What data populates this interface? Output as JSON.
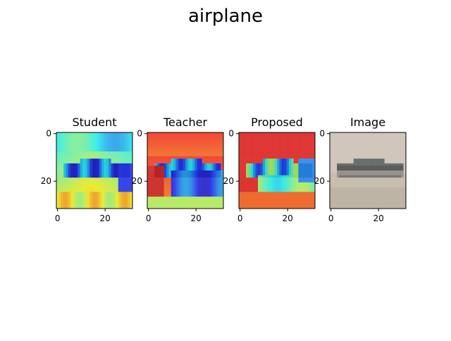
{
  "figure": {
    "suptitle": "airplane"
  },
  "chart_data": [
    {
      "type": "heatmap",
      "title": "Student",
      "xlabel": "",
      "ylabel": "",
      "xlim": [
        0,
        31
      ],
      "ylim": [
        31,
        0
      ],
      "xticks": [
        0,
        20
      ],
      "yticks": [
        0,
        20
      ],
      "grid": false,
      "content": "heatmap"
    },
    {
      "type": "heatmap",
      "title": "Teacher",
      "xlabel": "",
      "ylabel": "",
      "xlim": [
        0,
        31
      ],
      "ylim": [
        31,
        0
      ],
      "xticks": [
        0,
        20
      ],
      "yticks": [
        0,
        20
      ],
      "grid": false,
      "content": "heatmap"
    },
    {
      "type": "heatmap",
      "title": "Proposed",
      "xlabel": "",
      "ylabel": "",
      "xlim": [
        0,
        31
      ],
      "ylim": [
        31,
        0
      ],
      "xticks": [
        0,
        20
      ],
      "yticks": [
        0,
        20
      ],
      "grid": false,
      "content": "heatmap"
    },
    {
      "type": "heatmap",
      "title": "Image",
      "xlabel": "",
      "ylabel": "",
      "xlim": [
        0,
        31
      ],
      "ylim": [
        31,
        0
      ],
      "xticks": [
        0,
        20
      ],
      "yticks": [
        0,
        20
      ],
      "grid": false,
      "content": "photo"
    }
  ]
}
